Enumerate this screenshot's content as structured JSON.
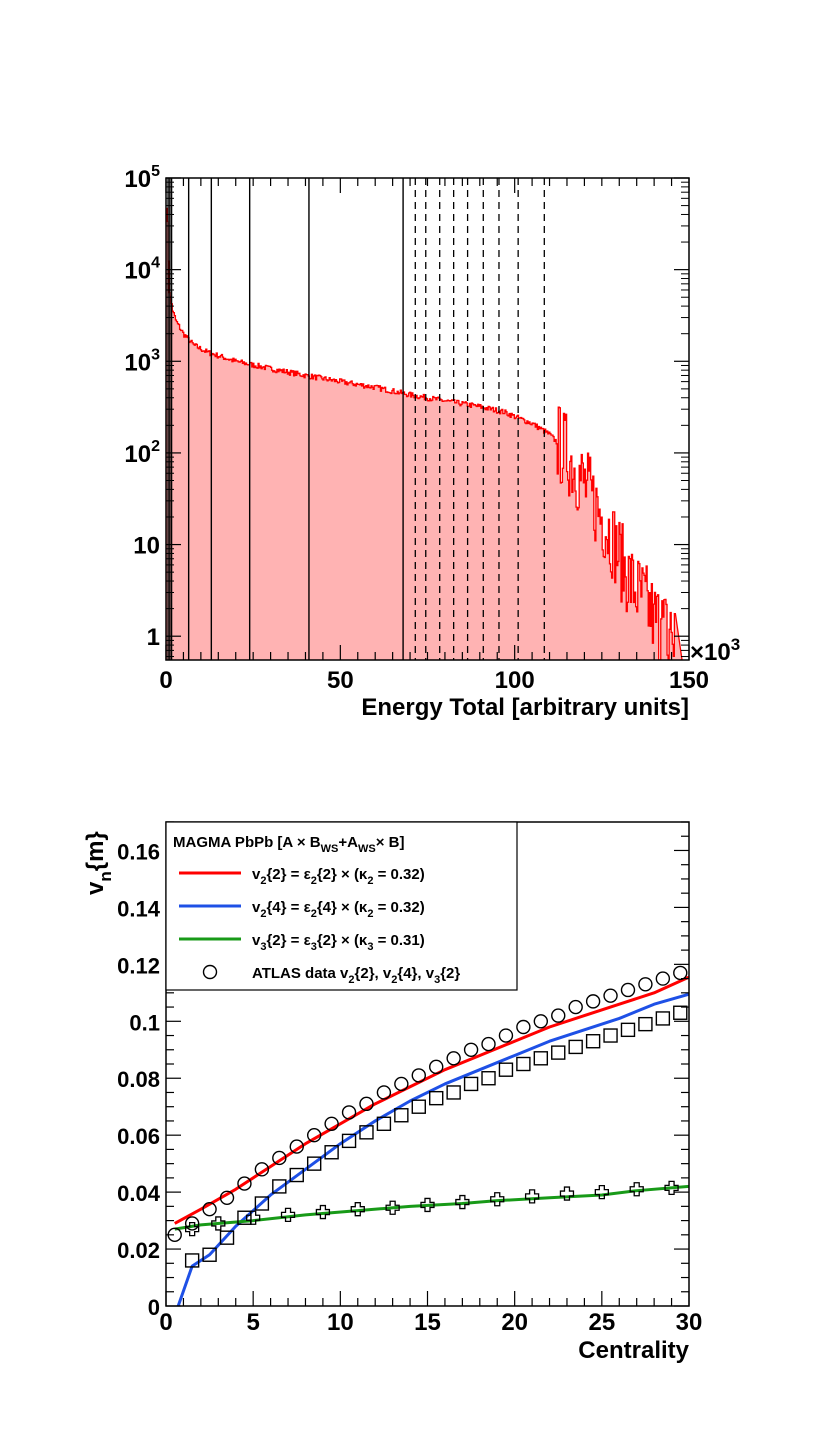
{
  "chart_data": [
    {
      "type": "histogram",
      "xlabel": "Energy Total [arbitrary units]",
      "x_multiplier": "×10",
      "x_multiplier_exp": "3",
      "xlim": [
        0,
        150
      ],
      "x_ticks": [
        "0",
        "50",
        "100",
        "150"
      ],
      "ylim": [
        0.55,
        100000
      ],
      "y_scale": "log",
      "y_ticks": [
        {
          "value": 1,
          "base": "1",
          "exp": ""
        },
        {
          "value": 10,
          "base": "10",
          "exp": ""
        },
        {
          "value": 100,
          "base": "10",
          "exp": "2"
        },
        {
          "value": 1000,
          "base": "10",
          "exp": "3"
        },
        {
          "value": 10000,
          "base": "10",
          "exp": "4"
        },
        {
          "value": 100000,
          "base": "10",
          "exp": "5"
        }
      ],
      "fill_color": "#ffb3b3",
      "line_color": "#ff0000",
      "curve": {
        "x": [
          0.3,
          0.6,
          1,
          2,
          3,
          5,
          8,
          12,
          20,
          30,
          40,
          50,
          60,
          70,
          80,
          90,
          97,
          100,
          105,
          110,
          115,
          120,
          125,
          128,
          131,
          134,
          137,
          140,
          143,
          146
        ],
        "y": [
          50000,
          20000,
          6000,
          3500,
          2700,
          2000,
          1500,
          1250,
          1000,
          830,
          700,
          600,
          520,
          430,
          370,
          320,
          280,
          250,
          210,
          160,
          100,
          45,
          20,
          12,
          6,
          3.5,
          2.5,
          1.6,
          1.2,
          1.0
        ]
      },
      "solid_lines_x": [
        0.6,
        1.1,
        1.6,
        6.5,
        13,
        24,
        41,
        68
      ],
      "dashed_lines_x": [
        71.5,
        74.5,
        78.5,
        82.5,
        86.5,
        91,
        95.5,
        101,
        108.5
      ]
    },
    {
      "type": "line",
      "xlabel": "Centrality",
      "ylabel": "v",
      "ylabel_sub": "n",
      "ylabel_rest": "{m}",
      "xlim": [
        0,
        30
      ],
      "ylim": [
        0,
        0.17
      ],
      "x_ticks": [
        "0",
        "5",
        "10",
        "15",
        "20",
        "25",
        "30"
      ],
      "y_ticks": [
        "0",
        "0.02",
        "0.04",
        "0.06",
        "0.08",
        "0.1",
        "0.12",
        "0.14",
        "0.16"
      ],
      "legend": {
        "title": "MAGMA PbPb [A × B",
        "title_sub1": "WS",
        "title_mid": "+A",
        "title_sub2": "WS",
        "title_end": "× B]",
        "entries": [
          {
            "color": "#ff0000",
            "a": "v",
            "a_sub": "2",
            "b": "{2} = ε",
            "b_sub": "2",
            "c": "{2} × (κ",
            "c_sub": "2",
            "d": " = 0.32)"
          },
          {
            "color": "#1e50e6",
            "a": "v",
            "a_sub": "2",
            "b": "{4} = ε",
            "b_sub": "2",
            "c": "{4} × (κ",
            "c_sub": "2",
            "d": " = 0.32)"
          },
          {
            "color": "#189a18",
            "a": "v",
            "a_sub": "3",
            "b": "{2} = ε",
            "b_sub": "3",
            "c": "{2} × (κ",
            "c_sub": "3",
            "d": " = 0.31)"
          }
        ],
        "data_entry": {
          "a": "ATLAS data v",
          "a_sub": "2",
          "b": "{2}, v",
          "b_sub": "2",
          "c": "{4}, v",
          "c_sub": "3",
          "d": "{2}"
        }
      },
      "series": [
        {
          "key": "v2_2_model",
          "color": "#ff0000",
          "x": [
            0.5,
            2,
            4,
            6,
            8,
            10,
            12,
            14,
            16,
            18,
            20,
            22,
            24,
            26,
            28,
            30
          ],
          "y": [
            0.029,
            0.034,
            0.041,
            0.049,
            0.057,
            0.064,
            0.071,
            0.077,
            0.083,
            0.088,
            0.093,
            0.098,
            0.102,
            0.106,
            0.11,
            0.1155
          ]
        },
        {
          "key": "v2_4_model",
          "color": "#1e50e6",
          "x": [
            0.7,
            1.5,
            2.5,
            4,
            6,
            8,
            10,
            12,
            14,
            16,
            18,
            20,
            22,
            24,
            26,
            28,
            30
          ],
          "y": [
            0.0,
            0.014,
            0.018,
            0.028,
            0.039,
            0.048,
            0.057,
            0.065,
            0.072,
            0.078,
            0.083,
            0.088,
            0.093,
            0.097,
            0.101,
            0.106,
            0.1095
          ]
        },
        {
          "key": "v3_2_model",
          "color": "#189a18",
          "x": [
            0.5,
            2,
            5,
            8,
            11,
            14,
            17,
            19,
            22,
            25,
            27,
            30
          ],
          "y": [
            0.027,
            0.0285,
            0.03,
            0.032,
            0.0335,
            0.035,
            0.036,
            0.037,
            0.038,
            0.039,
            0.0405,
            0.042
          ]
        },
        {
          "key": "atlas_v2_2",
          "marker": "circle",
          "x": [
            0.5,
            1.5,
            2.5,
            3.5,
            4.5,
            5.5,
            6.5,
            7.5,
            8.5,
            9.5,
            10.5,
            11.5,
            12.5,
            13.5,
            14.5,
            15.5,
            16.5,
            17.5,
            18.5,
            19.5,
            20.5,
            21.5,
            22.5,
            23.5,
            24.5,
            25.5,
            26.5,
            27.5,
            28.5,
            29.5
          ],
          "y": [
            0.025,
            0.029,
            0.034,
            0.038,
            0.043,
            0.048,
            0.052,
            0.056,
            0.06,
            0.064,
            0.068,
            0.071,
            0.075,
            0.078,
            0.081,
            0.084,
            0.087,
            0.09,
            0.092,
            0.095,
            0.098,
            0.1,
            0.102,
            0.105,
            0.107,
            0.109,
            0.111,
            0.113,
            0.115,
            0.117
          ]
        },
        {
          "key": "atlas_v2_4",
          "marker": "square",
          "x": [
            1.5,
            2.5,
            3.5,
            4.5,
            5.5,
            6.5,
            7.5,
            8.5,
            9.5,
            10.5,
            11.5,
            12.5,
            13.5,
            14.5,
            15.5,
            16.5,
            17.5,
            18.5,
            19.5,
            20.5,
            21.5,
            22.5,
            23.5,
            24.5,
            25.5,
            26.5,
            27.5,
            28.5,
            29.5
          ],
          "y": [
            0.016,
            0.018,
            0.024,
            0.031,
            0.036,
            0.042,
            0.046,
            0.05,
            0.054,
            0.058,
            0.061,
            0.064,
            0.067,
            0.07,
            0.073,
            0.075,
            0.078,
            0.08,
            0.083,
            0.085,
            0.087,
            0.089,
            0.091,
            0.093,
            0.095,
            0.097,
            0.099,
            0.101,
            0.103
          ]
        },
        {
          "key": "atlas_v3_2",
          "marker": "cross",
          "x": [
            1.5,
            3.0,
            5.0,
            7.0,
            9.0,
            11.0,
            13.0,
            15.0,
            17.0,
            19.0,
            21.0,
            23.0,
            25.0,
            27.0,
            29.0
          ],
          "y": [
            0.027,
            0.029,
            0.031,
            0.032,
            0.033,
            0.034,
            0.0345,
            0.0355,
            0.0365,
            0.0375,
            0.0385,
            0.0395,
            0.04,
            0.041,
            0.0415
          ]
        }
      ]
    }
  ]
}
